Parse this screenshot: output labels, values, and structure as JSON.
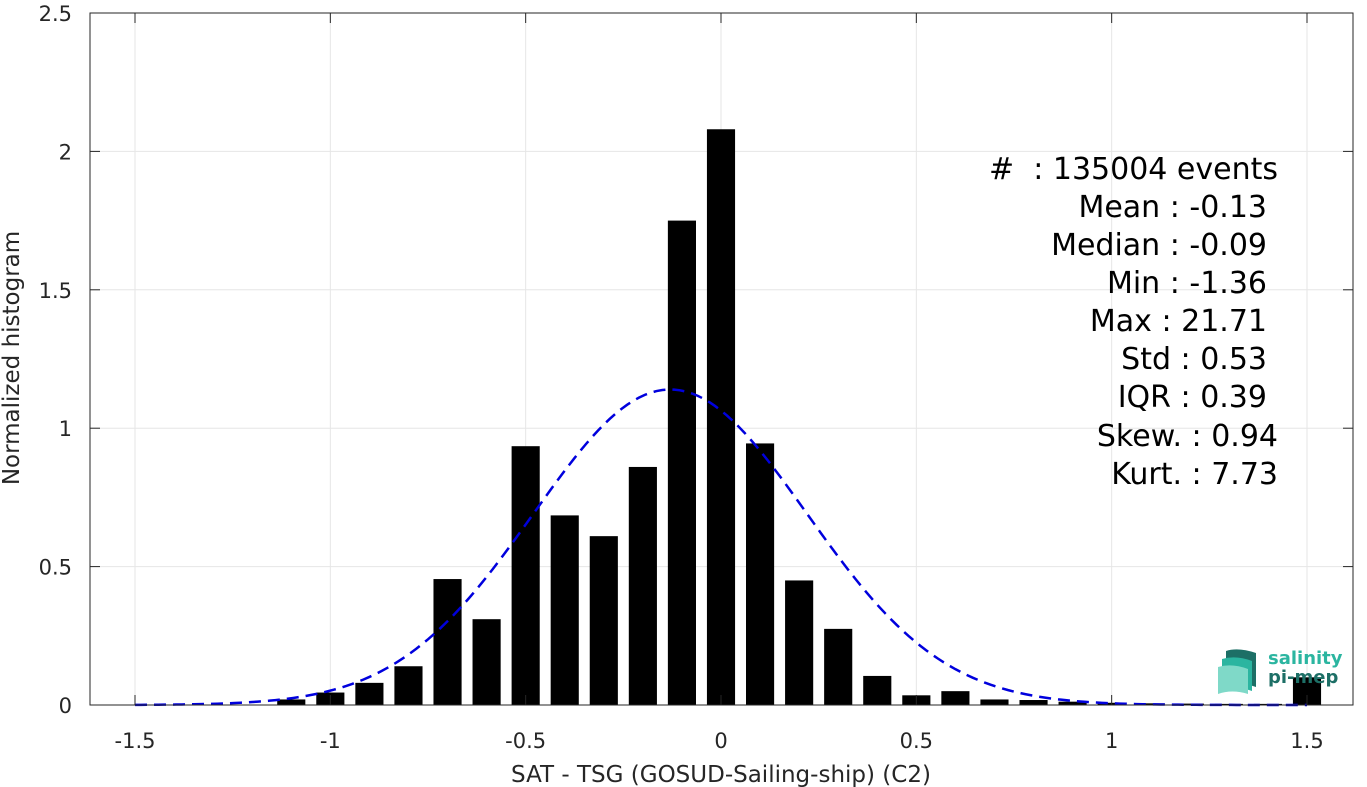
{
  "chart_data": {
    "type": "bar",
    "xlabel": "SAT - TSG (GOSUD-Sailing-ship) (C2)",
    "ylabel": "Normalized histogram",
    "xlim": [
      -1.5,
      1.5
    ],
    "ylim": [
      0,
      2.5
    ],
    "xticks": [
      "-1.5",
      "-1",
      "-0.5",
      "0",
      "0.5",
      "1",
      "1.5"
    ],
    "xtick_values": [
      -1.5,
      -1,
      -0.5,
      0,
      0.5,
      1,
      1.5
    ],
    "yticks": [
      "0",
      "0.5",
      "1",
      "1.5",
      "2",
      "2.5"
    ],
    "ytick_values": [
      0,
      0.5,
      1,
      1.5,
      2,
      2.5
    ],
    "grid": true,
    "bar_color": "#000000",
    "bins": [
      -1.5,
      -1.4,
      -1.3,
      -1.2,
      -1.1,
      -1.0,
      -0.9,
      -0.8,
      -0.7,
      -0.6,
      -0.5,
      -0.4,
      -0.3,
      -0.2,
      -0.1,
      0.0,
      0.1,
      0.2,
      0.3,
      0.4,
      0.5,
      0.6,
      0.7,
      0.8,
      0.9,
      1.0,
      1.1,
      1.2,
      1.3,
      1.4,
      1.5
    ],
    "values": [
      0.0,
      0.0,
      0.0,
      0.0,
      0.02,
      0.045,
      0.08,
      0.14,
      0.455,
      0.31,
      0.935,
      0.685,
      0.61,
      0.86,
      1.75,
      2.08,
      0.945,
      0.45,
      0.275,
      0.105,
      0.035,
      0.05,
      0.02,
      0.018,
      0.012,
      0.008,
      0.006,
      0.005,
      0.004,
      0.004,
      0.1
    ],
    "fit_curve": {
      "type": "gaussian",
      "color": "#0000dd",
      "style": "dashed",
      "mean": -0.13,
      "std": 0.35
    },
    "stats": {
      "events": "#  : 135004 events",
      "mean": "Mean : -0.13",
      "median": "Median : -0.09",
      "min": "Min : -1.36",
      "max": "Max : 21.71",
      "std": "Std : 0.53",
      "iqr": "IQR : 0.39",
      "skew": "Skew. : 0.94",
      "kurt": "Kurt. : 7.73"
    }
  },
  "logo": {
    "line1": "salinity",
    "line2": "pi-mep",
    "colors": [
      "#2bb5a0",
      "#1d6f66",
      "#7fd9c8"
    ]
  }
}
